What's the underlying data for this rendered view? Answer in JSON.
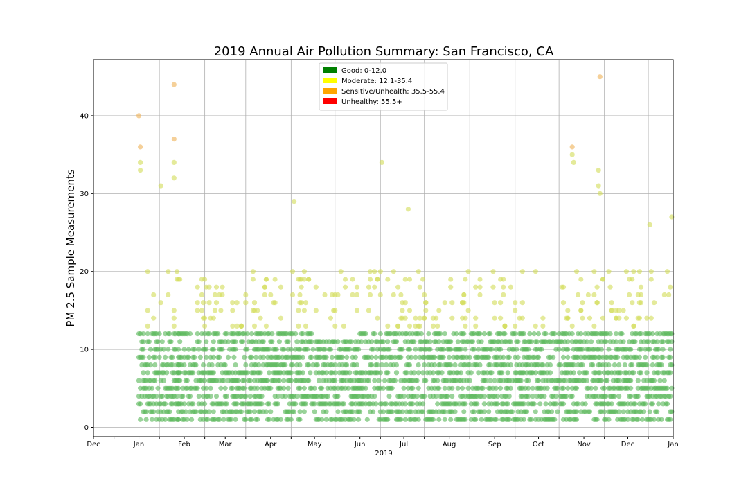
{
  "chart_data": {
    "type": "scatter",
    "title": "2019 Annual Air Pollution Summary: San Francisco, CA",
    "ylabel": "PM 2.5 Sample Measurements",
    "xlabel": "2019",
    "x_range": [
      "2018-12-01",
      "2020-01-01"
    ],
    "ylim": [
      -1.2,
      47.2
    ],
    "y_ticks": [
      0,
      10,
      20,
      30,
      40
    ],
    "x_ticks": [
      {
        "date": "2018-12-01",
        "label": "Dec"
      },
      {
        "date": "2019-01-01",
        "label": "Jan"
      },
      {
        "date": "2019-02-01",
        "label": "Feb"
      },
      {
        "date": "2019-03-01",
        "label": "Mar"
      },
      {
        "date": "2019-04-01",
        "label": "Apr"
      },
      {
        "date": "2019-05-01",
        "label": "May"
      },
      {
        "date": "2019-06-01",
        "label": "Jun"
      },
      {
        "date": "2019-07-01",
        "label": "Jul"
      },
      {
        "date": "2019-08-01",
        "label": "Aug"
      },
      {
        "date": "2019-09-01",
        "label": "Sep"
      },
      {
        "date": "2019-10-01",
        "label": "Oct"
      },
      {
        "date": "2019-11-01",
        "label": "Nov"
      },
      {
        "date": "2019-12-01",
        "label": "Dec"
      },
      {
        "date": "2020-01-01",
        "label": "Jan"
      }
    ],
    "grid": true,
    "legend_position": "top-center",
    "legend": [
      {
        "label": "Good: 0-12.0",
        "color": "#008000"
      },
      {
        "label": "Moderate: 12.1-35.4",
        "color": "#ffff00"
      },
      {
        "label": "Sensitive/Unhealth: 35.5-55.4",
        "color": "#ffa500"
      },
      {
        "label": "Unhealthy: 55.5+",
        "color": "#ff0000"
      }
    ],
    "point_colors": {
      "good": "#5cb85c",
      "moderate": "#d4dd5c",
      "sensitive": "#efb35a"
    },
    "series": [
      {
        "date_range": [
          "2019-01-01",
          "2019-01-28"
        ],
        "low": 1,
        "high": 12
      },
      {
        "date_range": [
          "2019-01-28",
          "2019-02-28"
        ],
        "low": 1,
        "high": 12
      },
      {
        "date_range": [
          "2019-03-01",
          "2019-03-31"
        ],
        "low": 1,
        "high": 12
      },
      {
        "date_range": [
          "2019-04-01",
          "2019-04-30"
        ],
        "low": 1,
        "high": 12
      },
      {
        "date_range": [
          "2019-05-01",
          "2019-05-31"
        ],
        "low": 1,
        "high": 11
      },
      {
        "date_range": [
          "2019-06-01",
          "2019-06-30"
        ],
        "low": 1,
        "high": 12
      },
      {
        "date_range": [
          "2019-07-01",
          "2019-07-31"
        ],
        "low": 1,
        "high": 12
      },
      {
        "date_range": [
          "2019-08-01",
          "2019-08-31"
        ],
        "low": 1,
        "high": 12
      },
      {
        "date_range": [
          "2019-09-01",
          "2019-09-30"
        ],
        "low": 1,
        "high": 12
      },
      {
        "date_range": [
          "2019-10-01",
          "2019-10-31"
        ],
        "low": 1,
        "high": 12
      },
      {
        "date_range": [
          "2019-11-01",
          "2019-11-30"
        ],
        "low": 1,
        "high": 12
      },
      {
        "date_range": [
          "2019-12-01",
          "2019-12-31"
        ],
        "low": 1,
        "high": 12
      }
    ],
    "notable_points": [
      {
        "date": "2019-01-01",
        "value": 40
      },
      {
        "date": "2019-01-02",
        "value": 36
      },
      {
        "date": "2019-01-25",
        "value": 44
      },
      {
        "date": "2019-01-25",
        "value": 37
      },
      {
        "date": "2019-01-02",
        "value": 34
      },
      {
        "date": "2019-01-02",
        "value": 33
      },
      {
        "date": "2019-01-25",
        "value": 34
      },
      {
        "date": "2019-01-25",
        "value": 32
      },
      {
        "date": "2019-01-16",
        "value": 31
      },
      {
        "date": "2019-04-17",
        "value": 29
      },
      {
        "date": "2019-06-16",
        "value": 34
      },
      {
        "date": "2019-07-04",
        "value": 28
      },
      {
        "date": "2019-10-24",
        "value": 36
      },
      {
        "date": "2019-10-24",
        "value": 35
      },
      {
        "date": "2019-10-25",
        "value": 34
      },
      {
        "date": "2019-11-11",
        "value": 33
      },
      {
        "date": "2019-11-11",
        "value": 31
      },
      {
        "date": "2019-11-12",
        "value": 30
      },
      {
        "date": "2019-11-12",
        "value": 45
      },
      {
        "date": "2019-12-16",
        "value": 26
      },
      {
        "date": "2019-12-31",
        "value": 27
      }
    ]
  }
}
